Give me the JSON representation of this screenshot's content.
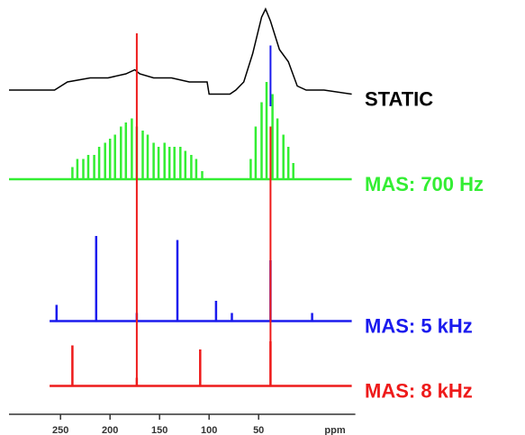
{
  "chart_data": {
    "type": "spectrum",
    "xlabel": "ppm",
    "xlim": [
      302,
      -44
    ],
    "ylim": [
      0,
      100
    ],
    "xticks": [
      250,
      200,
      150,
      100,
      50
    ],
    "series": [
      {
        "name": "STATIC",
        "color": "#000000",
        "style": "line",
        "x": [
          302,
          275,
          256,
          243,
          220,
          202,
          184,
          175,
          170,
          156,
          138,
          120,
          102,
          100,
          79,
          73,
          65,
          56,
          47,
          43,
          38,
          29,
          20,
          11,
          2,
          -16,
          -44
        ],
        "values": [
          80,
          80,
          80,
          82,
          83,
          83,
          84,
          85,
          84,
          83,
          83,
          82,
          82,
          79,
          79,
          80,
          82,
          89,
          98,
          100,
          97,
          90,
          87,
          81,
          80,
          80,
          79
        ]
      },
      {
        "name": "MAS: 700 Hz",
        "color": "#33ee33",
        "style": "sticks",
        "baseline": 58,
        "span": [
          302,
          -44
        ],
        "x": [
          238,
          233,
          227,
          222,
          216,
          211,
          205,
          200,
          195,
          189,
          184,
          178,
          173,
          167,
          162,
          156,
          151,
          145,
          140,
          135,
          129,
          124,
          118,
          113,
          107,
          58,
          53,
          47,
          42,
          36,
          31,
          25,
          20,
          15
        ],
        "values": [
          61,
          63,
          63,
          64,
          64,
          66,
          67,
          68,
          69,
          71,
          72,
          73,
          71,
          70,
          69,
          67,
          66,
          67,
          66,
          66,
          66,
          65,
          64,
          63,
          60,
          63,
          71,
          77,
          82,
          79,
          73,
          69,
          66,
          62
        ]
      },
      {
        "name": "MAS: 5 kHz",
        "color": "#1a1aee",
        "style": "sticks",
        "baseline": 23,
        "span": [
          261,
          -44
        ],
        "x": [
          254,
          214,
          173,
          132,
          93,
          77,
          38,
          -4
        ],
        "values": [
          27,
          44,
          25,
          43,
          28,
          25,
          38,
          25
        ]
      },
      {
        "name": "MAS: 8 kHz",
        "color": "#ee1a1a",
        "style": "sticks",
        "baseline": 7,
        "span": [
          261,
          -44
        ],
        "x": [
          238,
          173,
          109,
          38
        ],
        "values": [
          17,
          9,
          16,
          18
        ]
      }
    ],
    "reference_lines": [
      {
        "x": 173,
        "from": 7,
        "to": 94,
        "color": "#ee1a1a"
      },
      {
        "x": 38,
        "from": 7,
        "to": 71,
        "color": "#ee1a1a"
      },
      {
        "x": 38,
        "from": 76,
        "to": 91,
        "color": "#1a1aee"
      }
    ]
  }
}
